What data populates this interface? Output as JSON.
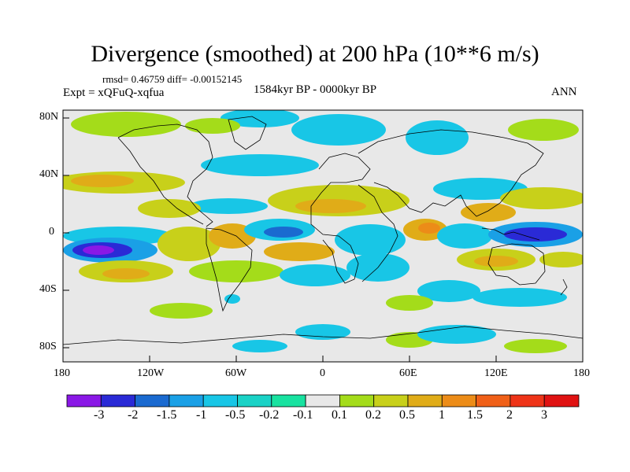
{
  "title": "Divergence (smoothed) at 200 hPa (10**6 m/s)",
  "stats": "rmsd= 0.46759 diff= -0.00152145",
  "experiment": "Expt = xQFuQ-xqfua",
  "period": "1584kyr BP - 0000kyr BP",
  "season": "ANN",
  "map": {
    "lat_labels": [
      "80N",
      "40N",
      "0",
      "40S",
      "80S"
    ],
    "lon_labels": [
      "180",
      "120W",
      "60W",
      "0",
      "60E",
      "120E",
      "180"
    ],
    "background_color": "#e8e8e8"
  },
  "colorbar": {
    "labels": [
      "-3",
      "-2",
      "-1.5",
      "-1",
      "-0.5",
      "-0.2",
      "-0.1",
      "0.1",
      "0.2",
      "0.5",
      "1",
      "1.5",
      "2",
      "3"
    ],
    "colors": [
      "#8a18e6",
      "#2a2ad6",
      "#1a6ad0",
      "#1aa0e6",
      "#18c6e6",
      "#1ad2c6",
      "#18e2a0",
      "#e8e8e8",
      "#a4dc1a",
      "#c8d01a",
      "#e0ac18",
      "#ec8c18",
      "#f06018",
      "#ee3418",
      "#e01212"
    ]
  }
}
